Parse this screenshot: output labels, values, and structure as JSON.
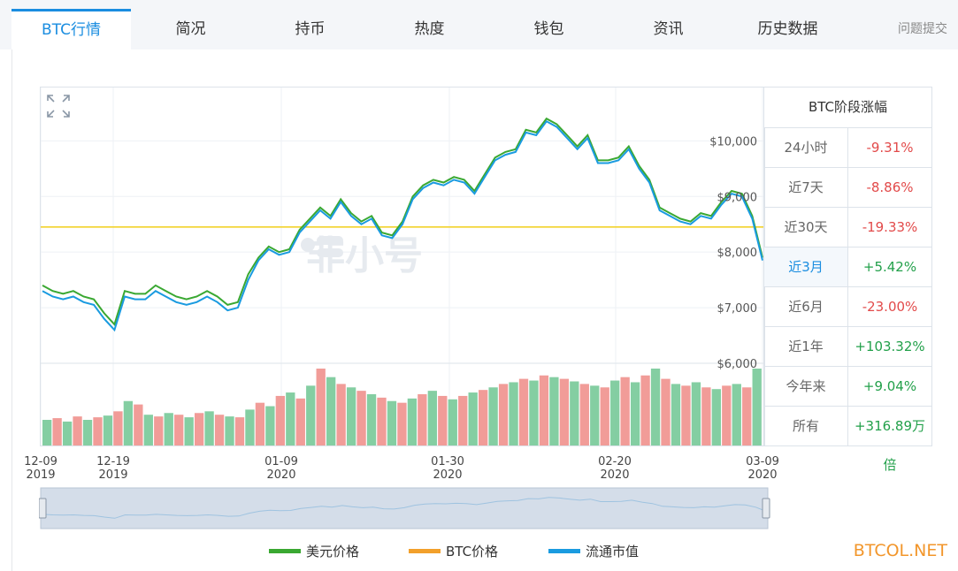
{
  "tabs": [
    {
      "label": "BTC行情",
      "active": true
    },
    {
      "label": "简况"
    },
    {
      "label": "持币"
    },
    {
      "label": "热度"
    },
    {
      "label": "钱包"
    },
    {
      "label": "资讯"
    },
    {
      "label": "历史数据"
    }
  ],
  "feedback_link": "问题提交",
  "watermark": "非小号",
  "chart_data": {
    "type": "line",
    "x_ticks": [
      {
        "date": "12-09",
        "year": "2019"
      },
      {
        "date": "12-19",
        "year": "2019"
      },
      {
        "date": "01-09",
        "year": "2020"
      },
      {
        "date": "01-30",
        "year": "2020"
      },
      {
        "date": "02-20",
        "year": "2020"
      },
      {
        "date": "03-09",
        "year": "2020"
      }
    ],
    "y_ticks": [
      "$10,000",
      "$9,000",
      "$8,000",
      "$7,000",
      "$6,000"
    ],
    "ylim": [
      6000,
      10800
    ],
    "reference_line": 8450,
    "series": [
      {
        "name": "美元价格",
        "color": "#3aa832",
        "values": [
          7400,
          7300,
          7250,
          7300,
          7200,
          7150,
          6900,
          6700,
          7300,
          7250,
          7250,
          7400,
          7300,
          7200,
          7150,
          7200,
          7300,
          7200,
          7050,
          7100,
          7600,
          7900,
          8100,
          8000,
          8050,
          8400,
          8600,
          8800,
          8650,
          8950,
          8700,
          8550,
          8650,
          8350,
          8300,
          8550,
          9000,
          9200,
          9300,
          9250,
          9350,
          9300,
          9100,
          9400,
          9700,
          9800,
          9850,
          10200,
          10150,
          10400,
          10300,
          10100,
          9900,
          10100,
          9650,
          9650,
          9700,
          9900,
          9550,
          9300,
          8800,
          8700,
          8600,
          8550,
          8700,
          8650,
          8900,
          9100,
          9050,
          8650,
          7900
        ]
      },
      {
        "name": "BTC价格",
        "color": "#f2a02b",
        "values": []
      },
      {
        "name": "流通市值",
        "color": "#1a9be0",
        "values": [
          7300,
          7200,
          7150,
          7200,
          7100,
          7050,
          6800,
          6600,
          7200,
          7150,
          7150,
          7300,
          7200,
          7100,
          7050,
          7100,
          7200,
          7100,
          6950,
          7000,
          7500,
          7850,
          8050,
          7950,
          8000,
          8350,
          8550,
          8750,
          8600,
          8900,
          8650,
          8500,
          8600,
          8300,
          8250,
          8500,
          8950,
          9150,
          9250,
          9200,
          9300,
          9250,
          9050,
          9350,
          9650,
          9750,
          9800,
          10150,
          10100,
          10350,
          10250,
          10050,
          9850,
          10050,
          9600,
          9600,
          9650,
          9850,
          9500,
          9250,
          8750,
          8650,
          8550,
          8500,
          8650,
          8600,
          8850,
          9050,
          9000,
          8600,
          7850
        ]
      }
    ],
    "volume": [
      30,
      32,
      28,
      34,
      30,
      33,
      35,
      40,
      52,
      48,
      36,
      34,
      38,
      36,
      33,
      38,
      40,
      36,
      34,
      33,
      42,
      50,
      46,
      58,
      62,
      55,
      70,
      90,
      80,
      72,
      68,
      64,
      60,
      56,
      52,
      50,
      55,
      60,
      64,
      58,
      54,
      58,
      62,
      65,
      68,
      72,
      74,
      78,
      76,
      82,
      80,
      78,
      75,
      72,
      70,
      68,
      76,
      80,
      74,
      82,
      90,
      78,
      72,
      70,
      74,
      68,
      66,
      70,
      72,
      68,
      90
    ]
  },
  "stats_panel": {
    "title": "BTC阶段涨幅",
    "rows": [
      {
        "label": "24小时",
        "value": "-9.31%",
        "trend": "neg"
      },
      {
        "label": "近7天",
        "value": "-8.86%",
        "trend": "neg"
      },
      {
        "label": "近30天",
        "value": "-19.33%",
        "trend": "neg"
      },
      {
        "label": "近3月",
        "value": "+5.42%",
        "trend": "pos",
        "active": true
      },
      {
        "label": "近6月",
        "value": "-23.00%",
        "trend": "neg"
      },
      {
        "label": "近1年",
        "value": "+103.32%",
        "trend": "pos"
      },
      {
        "label": "今年来",
        "value": "+9.04%",
        "trend": "pos"
      },
      {
        "label": "所有",
        "value": "+316.89万倍",
        "trend": "pos"
      }
    ]
  },
  "legend": [
    {
      "label": "美元价格",
      "color": "#3aa832"
    },
    {
      "label": "BTC价格",
      "color": "#f2a02b"
    },
    {
      "label": "流通市值",
      "color": "#1a9be0"
    }
  ],
  "brand": "BTCOL.NET"
}
